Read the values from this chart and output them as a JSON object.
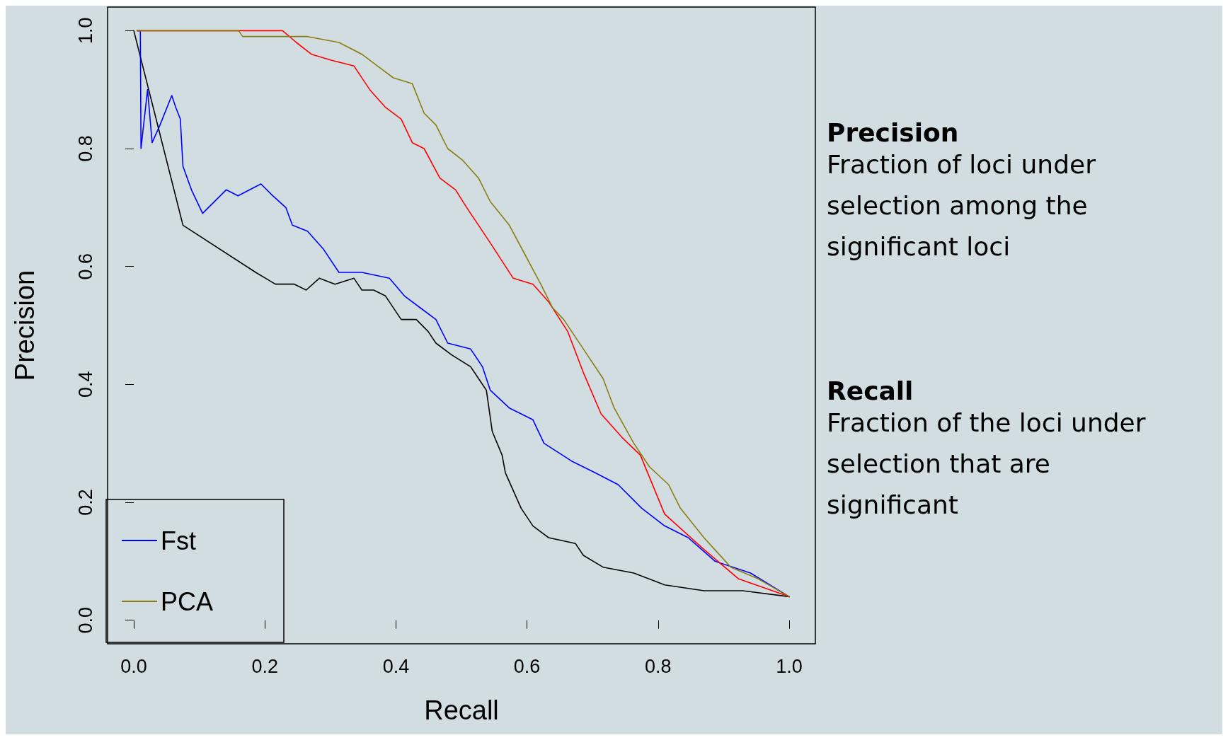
{
  "chart_data": {
    "type": "line",
    "xlabel": "Recall",
    "ylabel": "Precision",
    "xlim": [
      -0.04,
      1.04
    ],
    "ylim": [
      -0.04,
      1.04
    ],
    "xticks": [
      {
        "value": 0,
        "label": "0.0"
      },
      0.2,
      0.4,
      0.6,
      0.8,
      {
        "value": 1,
        "label": "1.0"
      }
    ],
    "yticks": [
      {
        "value": 0,
        "label": "0.0"
      },
      0.2,
      0.4,
      0.6,
      0.8,
      {
        "value": 1,
        "label": "1.0"
      }
    ],
    "grid": false,
    "legend": "bottom left",
    "marker": "none",
    "line_style": "solid",
    "annotations": [
      "Precision",
      "Fraction of loci under selection among the significant loci",
      "Recall",
      "Fraction of the loci under selection that are significant"
    ],
    "series": [
      {
        "color": "#000000",
        "x": [
          0,
          0.075,
          0.186,
          0.216,
          0.245,
          0.263,
          0.283,
          0.307,
          0.336,
          0.348,
          0.366,
          0.384,
          0.408,
          0.431,
          0.449,
          0.461,
          0.485,
          0.514,
          0.526,
          0.538,
          0.547,
          0.562,
          0.567,
          0.579,
          0.591,
          0.609,
          0.633,
          0.674,
          0.686,
          0.716,
          0.763,
          0.81,
          0.87,
          0.929,
          1
        ],
        "values": [
          1,
          0.67,
          0.59,
          0.57,
          0.57,
          0.56,
          0.58,
          0.57,
          0.58,
          0.56,
          0.56,
          0.55,
          0.51,
          0.51,
          0.49,
          0.47,
          0.45,
          0.43,
          0.41,
          0.39,
          0.32,
          0.28,
          0.25,
          0.22,
          0.19,
          0.16,
          0.14,
          0.13,
          0.11,
          0.09,
          0.08,
          0.06,
          0.05,
          0.05,
          0.04
        ]
      },
      {
        "name": "Fst",
        "color": "#0000ff",
        "x": [
          0.005,
          0.01,
          0.011,
          0.021,
          0.028,
          0.04,
          0.058,
          0.064,
          0.071,
          0.075,
          0.088,
          0.105,
          0.141,
          0.159,
          0.194,
          0.212,
          0.232,
          0.242,
          0.265,
          0.289,
          0.313,
          0.348,
          0.39,
          0.413,
          0.437,
          0.461,
          0.479,
          0.514,
          0.532,
          0.544,
          0.573,
          0.609,
          0.626,
          0.668,
          0.704,
          0.739,
          0.775,
          0.81,
          0.846,
          0.887,
          0.941,
          1
        ],
        "values": [
          1,
          1,
          0.8,
          0.9,
          0.81,
          0.84,
          0.89,
          0.87,
          0.85,
          0.77,
          0.73,
          0.69,
          0.73,
          0.72,
          0.74,
          0.72,
          0.7,
          0.67,
          0.66,
          0.63,
          0.59,
          0.59,
          0.58,
          0.55,
          0.53,
          0.51,
          0.47,
          0.46,
          0.43,
          0.39,
          0.36,
          0.34,
          0.3,
          0.27,
          0.25,
          0.23,
          0.19,
          0.16,
          0.14,
          0.1,
          0.08,
          0.04
        ]
      },
      {
        "color": "#ff0000",
        "x": [
          0.005,
          0.227,
          0.248,
          0.271,
          0.301,
          0.336,
          0.36,
          0.384,
          0.408,
          0.425,
          0.443,
          0.467,
          0.491,
          0.508,
          0.544,
          0.579,
          0.609,
          0.633,
          0.662,
          0.686,
          0.713,
          0.745,
          0.773,
          0.81,
          0.87,
          0.923,
          1
        ],
        "values": [
          1,
          1,
          0.98,
          0.96,
          0.95,
          0.94,
          0.9,
          0.87,
          0.85,
          0.81,
          0.8,
          0.75,
          0.73,
          0.7,
          0.64,
          0.58,
          0.57,
          0.54,
          0.49,
          0.42,
          0.35,
          0.31,
          0.28,
          0.18,
          0.12,
          0.07,
          0.04
        ]
      },
      {
        "name": "PCA",
        "color": "#8b7d10",
        "x": [
          0.005,
          0.16,
          0.166,
          0.265,
          0.313,
          0.348,
          0.372,
          0.396,
          0.425,
          0.443,
          0.461,
          0.479,
          0.502,
          0.526,
          0.544,
          0.573,
          0.597,
          0.621,
          0.639,
          0.656,
          0.674,
          0.692,
          0.716,
          0.733,
          0.763,
          0.787,
          0.816,
          0.834,
          0.87,
          0.911,
          0.953,
          1
        ],
        "values": [
          1,
          1,
          0.99,
          0.99,
          0.98,
          0.96,
          0.94,
          0.92,
          0.91,
          0.86,
          0.84,
          0.8,
          0.78,
          0.75,
          0.71,
          0.67,
          0.62,
          0.57,
          0.53,
          0.51,
          0.48,
          0.45,
          0.41,
          0.36,
          0.3,
          0.26,
          0.23,
          0.19,
          0.14,
          0.09,
          0.07,
          0.04
        ]
      }
    ]
  }
}
